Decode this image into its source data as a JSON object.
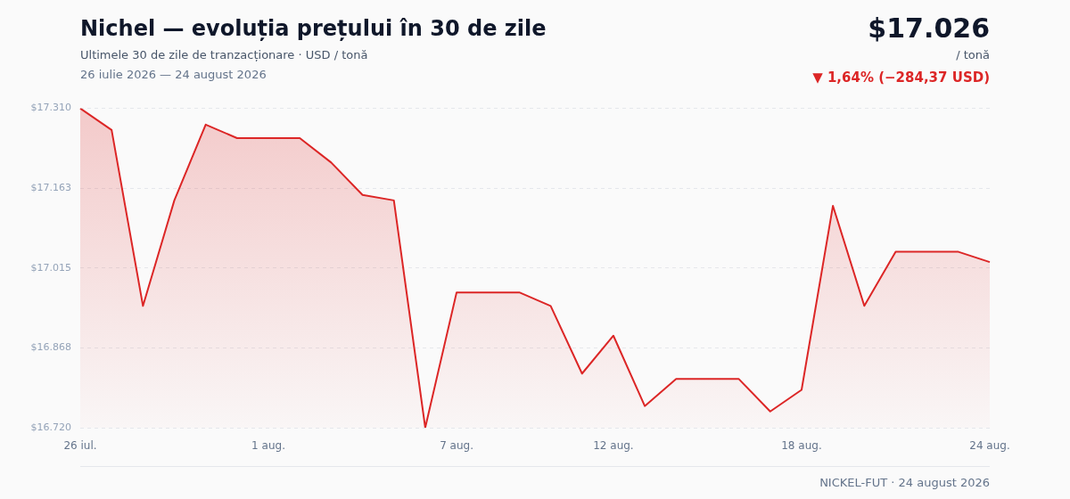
{
  "chart_data": {
    "type": "area",
    "title": "Nichel — evoluția prețului în 30 de zile",
    "subtitle": "Ultimele 30 de zile de tranzacționare · USD / tonă",
    "categories": [
      "26 iul.",
      null,
      null,
      null,
      null,
      null,
      "1 aug.",
      null,
      null,
      null,
      null,
      null,
      "7 aug.",
      null,
      null,
      null,
      null,
      "12 aug.",
      null,
      null,
      null,
      null,
      null,
      "18 aug.",
      null,
      null,
      null,
      null,
      null,
      "24 aug."
    ],
    "series": [
      {
        "color": "#dc2626",
        "values": [
          17310,
          17270,
          16945,
          17140,
          17280,
          17255,
          17255,
          17255,
          17210,
          17150,
          17140,
          16720,
          16970,
          16970,
          16970,
          16945,
          16820,
          16890,
          16760,
          16810,
          16810,
          16810,
          16750,
          16790,
          17130,
          16945,
          17045,
          17045,
          17045,
          17026
        ]
      }
    ],
    "ylim": [
      16720,
      17310
    ],
    "yticks": [
      {
        "value": 16720,
        "label": "$16.720"
      },
      {
        "value": 16867.5,
        "label": "$16.868"
      },
      {
        "value": 17015,
        "label": "$17.015"
      },
      {
        "value": 17162.5,
        "label": "$17.163"
      },
      {
        "value": 17310,
        "label": "$17.310"
      }
    ],
    "grid": "y",
    "legend": false,
    "marker": "none",
    "annotations": [
      "26 iulie 2026 — 24 august 2026",
      "$17.026",
      "/ tonă",
      "▼ 1,64% (−284,37 USD)",
      "NICKEL-FUT · 24 august 2026"
    ]
  }
}
